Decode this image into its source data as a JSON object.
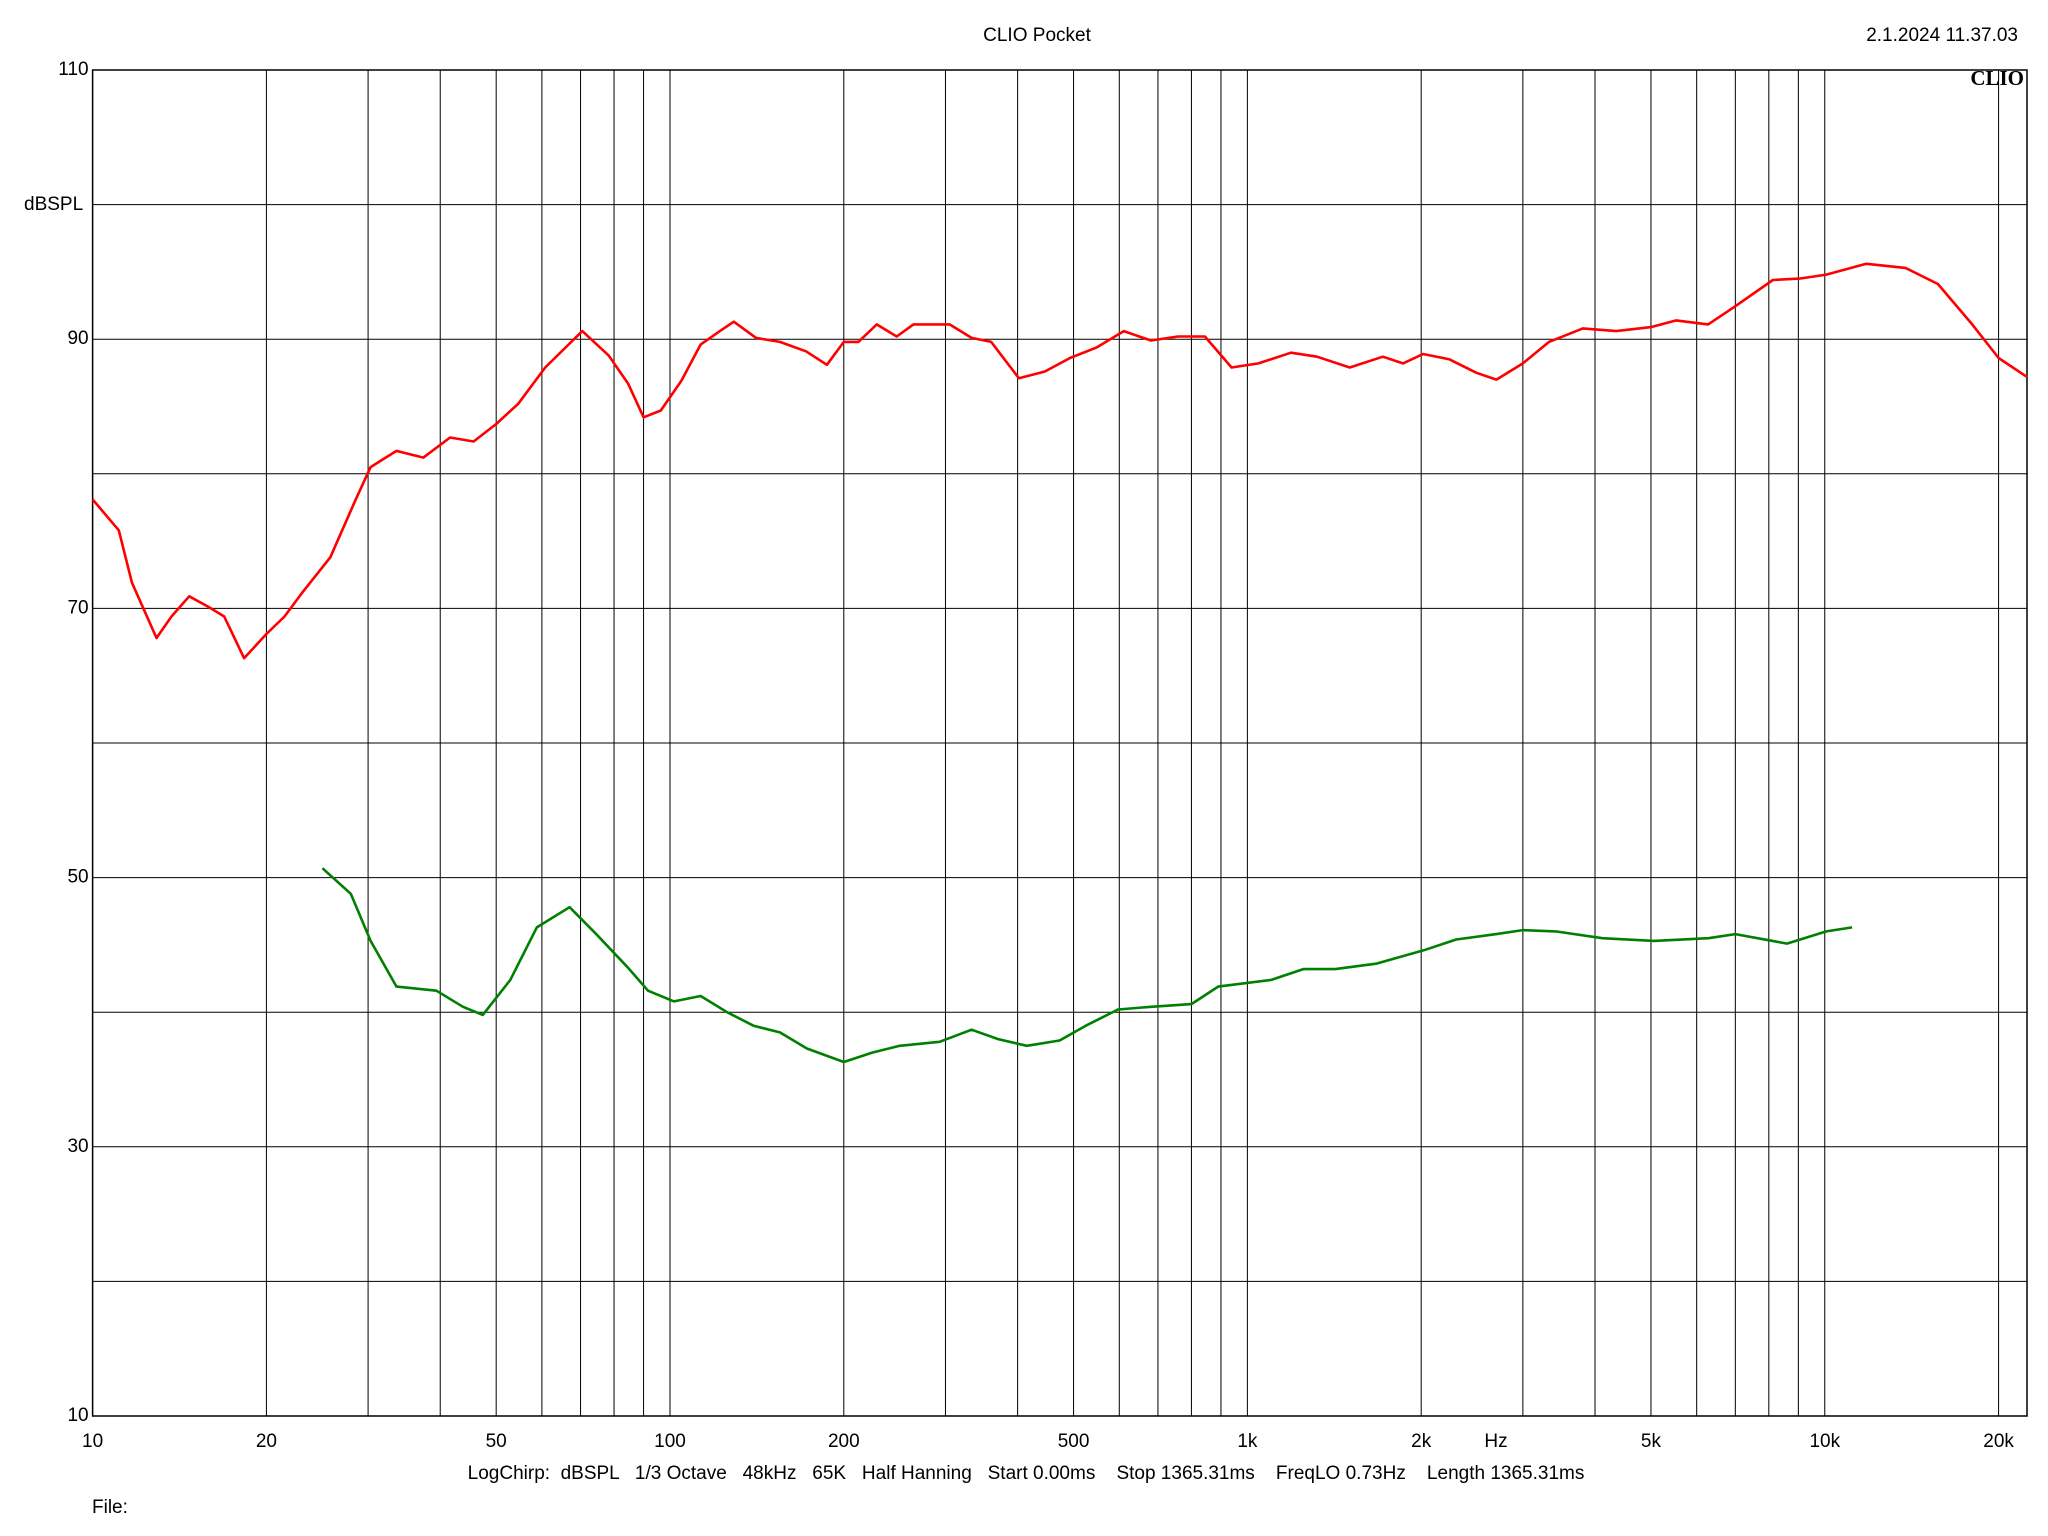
{
  "chart_data": {
    "type": "line",
    "title": "CLIO Pocket",
    "timestamp": "2.1.2024 11.37.03",
    "logo": "CLIO",
    "y_label": "dBSPL",
    "x_label": "Hz",
    "footer": "LogChirp:  dBSPL   1/3 Octave   48kHz   65K   Half Hanning   Start 0.00ms    Stop 1365.31ms    FreqLO 0.73Hz    Length 1365.31ms",
    "file_label": "File:",
    "log_x": true,
    "grid": true,
    "xlim": [
      10,
      22400
    ],
    "ylim": [
      10,
      110
    ],
    "xticks": [
      10,
      20,
      50,
      100,
      200,
      500,
      {
        "value": 1000,
        "label": "1k"
      },
      {
        "value": 2000,
        "label": "2k"
      },
      {
        "value": 5000,
        "label": "5k"
      },
      {
        "value": 10000,
        "label": "10k"
      },
      {
        "value": 20000,
        "label": "20k"
      }
    ],
    "xminor": [
      30,
      40,
      60,
      70,
      80,
      90,
      300,
      400,
      600,
      700,
      800,
      900,
      3000,
      4000,
      6000,
      7000,
      8000,
      9000
    ],
    "yticks": [
      10,
      30,
      50,
      70,
      90,
      110
    ],
    "yminor": [
      20,
      40,
      60,
      80,
      100
    ],
    "series": [
      {
        "color": "#ff0000",
        "x": [
          10,
          11.1,
          11.7,
          12.9,
          13.7,
          14.7,
          15.9,
          16.9,
          18.3,
          20,
          21.5,
          23,
          25.8,
          28.5,
          30.3,
          33.6,
          37.4,
          41.6,
          45.7,
          50,
          54.6,
          60.8,
          70.5,
          78.3,
          84.6,
          90,
          96.4,
          104.6,
          113,
          122,
          129,
          141,
          155,
          172,
          187,
          200,
          212,
          228,
          247,
          264,
          285,
          305,
          333,
          360,
          402,
          446,
          493,
          549,
          611,
          681,
          758,
          844,
          939,
          1045,
          1190,
          1320,
          1504,
          1717,
          1860,
          2015,
          2240,
          2493,
          2700,
          3000,
          3330,
          3810,
          4355,
          5000,
          5530,
          6280,
          6970,
          8130,
          9040,
          10060,
          11800,
          13800,
          15700,
          18000,
          20000,
          22400
        ],
        "values": [
          78.1,
          75.8,
          71.9,
          67.8,
          69.4,
          70.9,
          70.1,
          69.4,
          66.3,
          68.1,
          69.4,
          71.1,
          73.8,
          78,
          80.5,
          81.7,
          81.2,
          82.7,
          82.4,
          83.7,
          85.2,
          87.9,
          90.6,
          88.8,
          86.7,
          84.2,
          84.7,
          86.9,
          89.6,
          90.6,
          91.3,
          90.1,
          89.8,
          89.1,
          88.1,
          89.8,
          89.8,
          91.1,
          90.2,
          91.1,
          91.1,
          91.1,
          90.1,
          89.8,
          87.1,
          87.6,
          88.6,
          89.4,
          90.6,
          89.9,
          90.2,
          90.2,
          87.9,
          88.2,
          89,
          88.7,
          87.9,
          88.7,
          88.2,
          88.9,
          88.5,
          87.5,
          87,
          88.2,
          89.8,
          90.8,
          90.6,
          90.9,
          91.4,
          91.1,
          92.4,
          94.4,
          94.5,
          94.8,
          95.6,
          95.3,
          94.1,
          91.1,
          88.6,
          87.2
        ]
      },
      {
        "color": "#008000",
        "x": [
          25,
          28,
          30.3,
          33.6,
          39.4,
          43.8,
          47.4,
          52.9,
          58.8,
          67,
          74.5,
          84.6,
          91.6,
          101.6,
          113,
          125.6,
          139.5,
          155,
          172.6,
          200,
          224,
          250,
          293,
          333,
          370,
          415,
          473,
          525,
          597,
          681,
          800,
          890,
          1100,
          1250,
          1420,
          1670,
          2020,
          2300,
          2700,
          3000,
          3420,
          4120,
          5060,
          6290,
          7000,
          8600,
          10060,
          11150
        ],
        "values": [
          50.7,
          48.8,
          45.3,
          41.9,
          41.6,
          40.4,
          39.8,
          42.4,
          46.3,
          47.8,
          45.8,
          43.3,
          41.6,
          40.8,
          41.2,
          40,
          39,
          38.5,
          37.3,
          36.3,
          37,
          37.5,
          37.8,
          38.7,
          38,
          37.5,
          37.9,
          39,
          40.2,
          40.4,
          40.6,
          41.9,
          42.4,
          43.2,
          43.2,
          43.6,
          44.6,
          45.4,
          45.8,
          46.1,
          46,
          45.5,
          45.3,
          45.5,
          45.8,
          45.1,
          46,
          46.3
        ]
      }
    ]
  }
}
